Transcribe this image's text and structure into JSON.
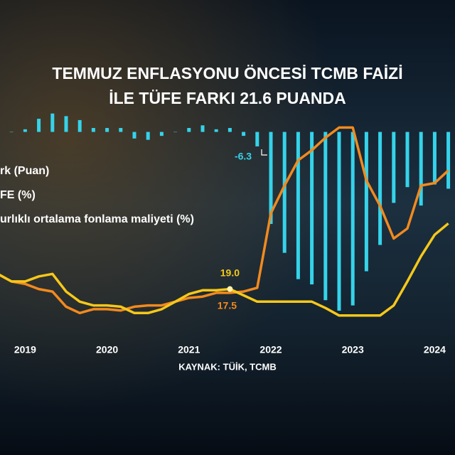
{
  "chart_data": {
    "type": "combo",
    "title": "TEMMUZ ENFLASYONU ÖNCESİ TCMB FAİZİ",
    "subtitle": "İLE TÜFE FARKI 21.6 PUANDA",
    "source": "KAYNAK: TÜİK, TCMB",
    "categories": [
      null,
      null,
      "2019",
      null,
      null,
      null,
      null,
      null,
      "2020",
      null,
      null,
      null,
      null,
      null,
      "2021",
      null,
      null,
      null,
      null,
      null,
      "2022",
      null,
      null,
      null,
      null,
      null,
      "2023",
      null,
      null,
      null,
      null,
      null,
      "2024",
      null
    ],
    "ylim": [
      0,
      100
    ],
    "y2lim": [
      -78,
      18
    ],
    "series": [
      {
        "name": "rk (Puan)",
        "type": "bar",
        "axis": "y2",
        "color": "#35d3ea",
        "values": [
          0,
          0,
          1,
          5,
          7,
          6,
          4.5,
          1.5,
          1.5,
          1.5,
          -2.5,
          -3,
          -1.5,
          0,
          1.5,
          2.5,
          1,
          1.5,
          -1.5,
          -5.5,
          -35,
          -46,
          -56,
          -58,
          -64,
          -68,
          -66,
          -53,
          -43,
          -27,
          -21,
          -28,
          -20,
          -21.6
        ]
      },
      {
        "name": "FE (%)",
        "type": "line",
        "color": "#f28a1e",
        "values": [
          25,
          22,
          21,
          19,
          18,
          12,
          9.5,
          11,
          11,
          10.5,
          12,
          12.5,
          12.5,
          14,
          15.5,
          16,
          17.5,
          17.5,
          18,
          19.5,
          49,
          60,
          70,
          74,
          79,
          83,
          83,
          62,
          52,
          39,
          43,
          60,
          61,
          66
        ]
      },
      {
        "name": "urlıklı ortalama fonlama maliyeti (%)",
        "type": "line",
        "color": "#f6c81a",
        "values": [
          25,
          22,
          22,
          24,
          25,
          18,
          14,
          12.5,
          12.5,
          12,
          9.5,
          9.5,
          11,
          14,
          17,
          18.5,
          18.5,
          19,
          16.5,
          14,
          14,
          14,
          14,
          14,
          11.5,
          8.5,
          8.5,
          8.5,
          8.5,
          12.5,
          22,
          32,
          40.5,
          45
        ]
      }
    ],
    "annotations": [
      "-6.3",
      "19.0",
      "17.5"
    ]
  }
}
